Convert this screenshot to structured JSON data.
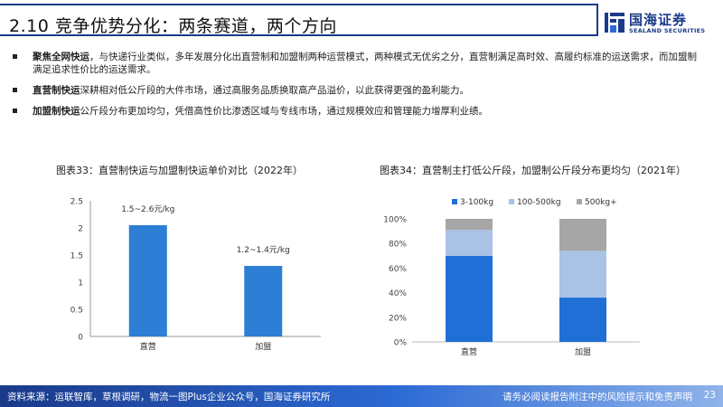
{
  "header": {
    "title": "2.10 竞争优势分化：两条赛道，两个方向",
    "logo_cn": "国海证券",
    "logo_en": "SEALAND SECURITIES"
  },
  "bullets": [
    {
      "bold": "聚焦全网快运",
      "text": "，与快递行业类似，多年发展分化出直营制和加盟制两种运营模式，两种模式无优劣之分，直营制满足高时效、高履约标准的运送需求，而加盟制满足追求性价比的运送需求。"
    },
    {
      "bold": "直营制快运",
      "text": "深耕相对低公斤段的大件市场，通过高服务品质换取高产品溢价，以此获得更强的盈利能力。"
    },
    {
      "bold": "加盟制快运",
      "text": "公斤段分布更加均匀，凭借高性价比渗透区域与专线市场，通过规模效应和管理能力增厚利业绩。"
    }
  ],
  "chart_data": [
    {
      "type": "bar",
      "title": "图表33：直营制快运与加盟制快运单价对比（2022年）",
      "categories": [
        "直营",
        "加盟"
      ],
      "values": [
        2.05,
        1.3
      ],
      "data_labels": [
        "1.5~2.6元/kg",
        "1.2~1.4元/kg"
      ],
      "ylim": [
        0,
        2.5
      ],
      "yticks": [
        "0",
        "0.5",
        "1",
        "1.5",
        "2",
        "2.5"
      ],
      "color": "#2c7fd4"
    },
    {
      "type": "bar",
      "stacked": true,
      "title": "图表34：直营制主打低公斤段，加盟制公斤段分布更均匀（2021年）",
      "categories": [
        "直营",
        "加盟"
      ],
      "series": [
        {
          "name": "3-100kg",
          "values": [
            70,
            36
          ],
          "color": "#1f6fd6"
        },
        {
          "name": "100-500kg",
          "values": [
            21,
            38
          ],
          "color": "#a9c2e6"
        },
        {
          "name": "500kg+",
          "values": [
            9,
            26
          ],
          "color": "#a6a6a6"
        }
      ],
      "ylim": [
        0,
        100
      ],
      "yticks": [
        "0%",
        "20%",
        "40%",
        "60%",
        "80%",
        "100%"
      ],
      "legend_position": "top"
    }
  ],
  "footer": {
    "source": "资料来源：运联智库，草根调研，物流一图Plus企业公众号，国海证券研究所",
    "disclaimer": "请务必阅读报告附注中的风险提示和免责声明",
    "page": "23"
  }
}
